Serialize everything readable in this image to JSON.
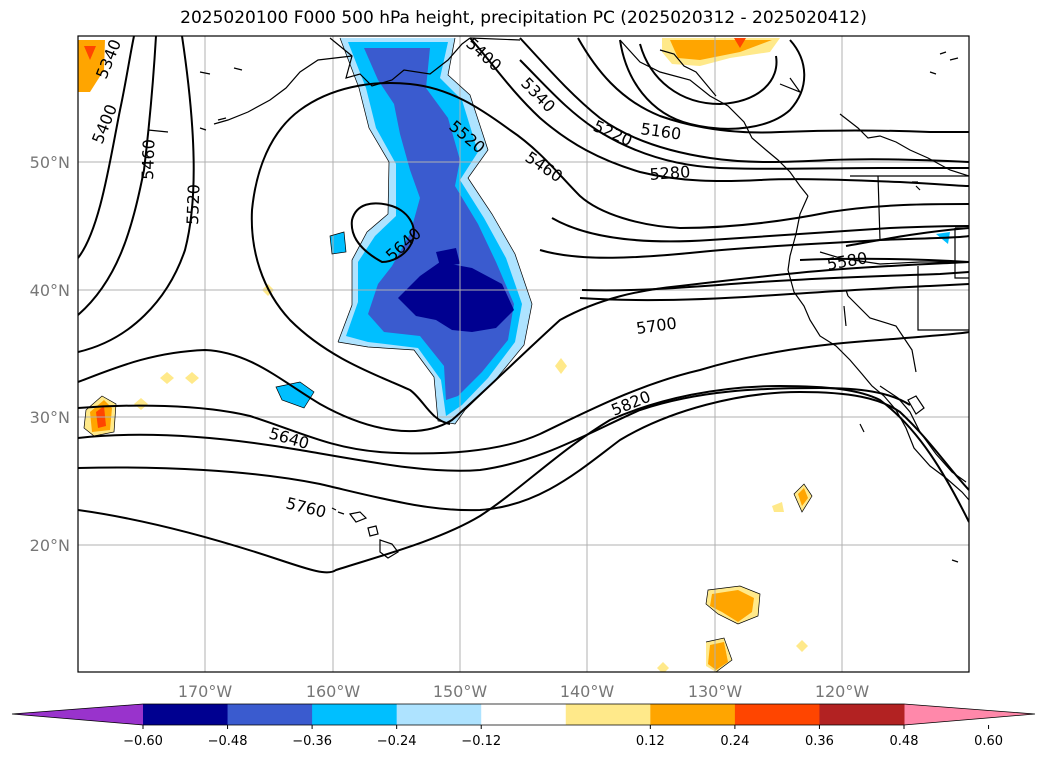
{
  "title": "2025020100 F000 500 hPa height, precipitation PC (2025020312 - 2025020412)",
  "map": {
    "lon_ticks": [
      "170°W",
      "160°W",
      "150°W",
      "140°W",
      "130°W",
      "120°W"
    ],
    "lat_ticks": [
      "50°N",
      "40°N",
      "30°N",
      "20°N"
    ],
    "grid": true,
    "contour_labels": [
      "5340",
      "5400",
      "5460",
      "5520",
      "5400",
      "5340",
      "5520",
      "5460",
      "5220",
      "5160",
      "5280",
      "5640",
      "5580",
      "5700",
      "5820",
      "5640",
      "5760"
    ]
  },
  "colorbar": {
    "ticks": [
      "−0.60",
      "−0.48",
      "−0.36",
      "−0.24",
      "−0.12",
      "0.12",
      "0.24",
      "0.36",
      "0.48",
      "0.60"
    ],
    "colors": [
      "#9933cc",
      "#000090",
      "#3a5bcf",
      "#00bfff",
      "#aee3ff",
      "#ffffff",
      "#ffe98a",
      "#ffa500",
      "#ff4500",
      "#b22222",
      "#ff88aa"
    ],
    "extend": "both"
  },
  "colors": {
    "neg_strong": "#000090",
    "neg_mid": "#3a5bcf",
    "neg_light": "#00bfff",
    "neg_pale": "#aee3ff",
    "pos_pale": "#ffe98a",
    "pos_mid": "#ffa500",
    "pos_strong": "#ff4500"
  }
}
